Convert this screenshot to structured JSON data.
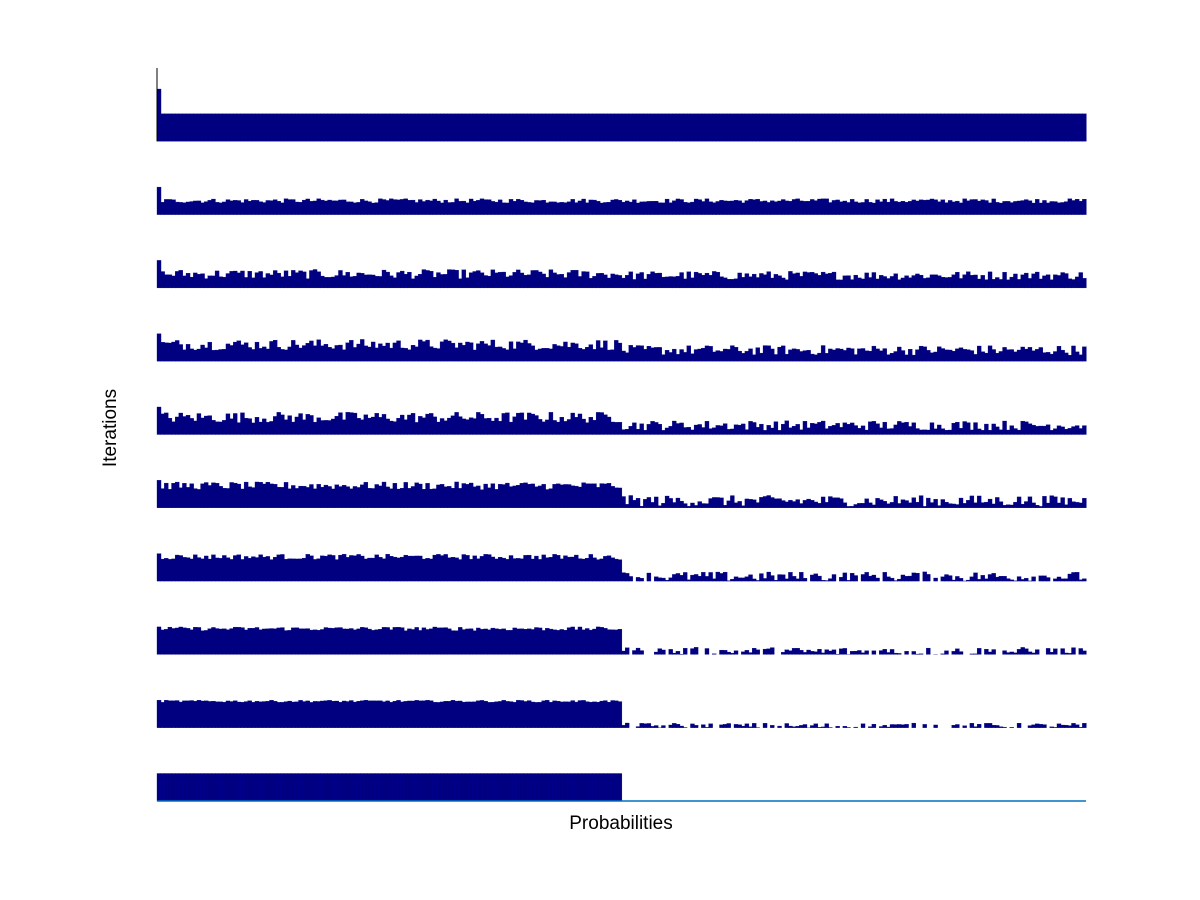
{
  "chart_data": {
    "type": "bar",
    "xlabel": "Probabilities",
    "ylabel": "Iterations",
    "title": "",
    "bar_color": "#000080",
    "baseline_color": "#0070c0",
    "n_items": 256,
    "split_index": 128,
    "subplots": [
      {
        "high_level": 1.0,
        "low_level": 1.0,
        "high_noise": 0.0,
        "low_noise": 0.0,
        "spike_first": 1.9
      },
      {
        "high_level": 0.5,
        "low_level": 0.5,
        "high_noise": 0.08,
        "low_noise": 0.08,
        "spike_first": 1.0
      },
      {
        "high_level": 0.5,
        "low_level": 0.45,
        "high_noise": 0.17,
        "low_noise": 0.16,
        "spike_first": 1.0
      },
      {
        "high_level": 0.6,
        "low_level": 0.4,
        "high_noise": 0.2,
        "low_noise": 0.18,
        "spike_first": 1.0
      },
      {
        "high_level": 0.62,
        "low_level": 0.33,
        "high_noise": 0.2,
        "low_noise": 0.18,
        "spike_first": 1.0
      },
      {
        "high_level": 0.8,
        "low_level": 0.25,
        "high_noise": 0.14,
        "low_noise": 0.2,
        "spike_first": 1.0
      },
      {
        "high_level": 0.88,
        "low_level": 0.16,
        "high_noise": 0.1,
        "low_noise": 0.18,
        "spike_first": 1.0
      },
      {
        "high_level": 0.93,
        "low_level": 0.1,
        "high_noise": 0.07,
        "low_noise": 0.16,
        "spike_first": 1.0
      },
      {
        "high_level": 0.96,
        "low_level": 0.05,
        "high_noise": 0.04,
        "low_noise": 0.12,
        "spike_first": 1.0
      },
      {
        "high_level": 1.0,
        "low_level": 0.0,
        "high_noise": 0.0,
        "low_noise": 0.0,
        "spike_first": 1.0
      }
    ]
  }
}
